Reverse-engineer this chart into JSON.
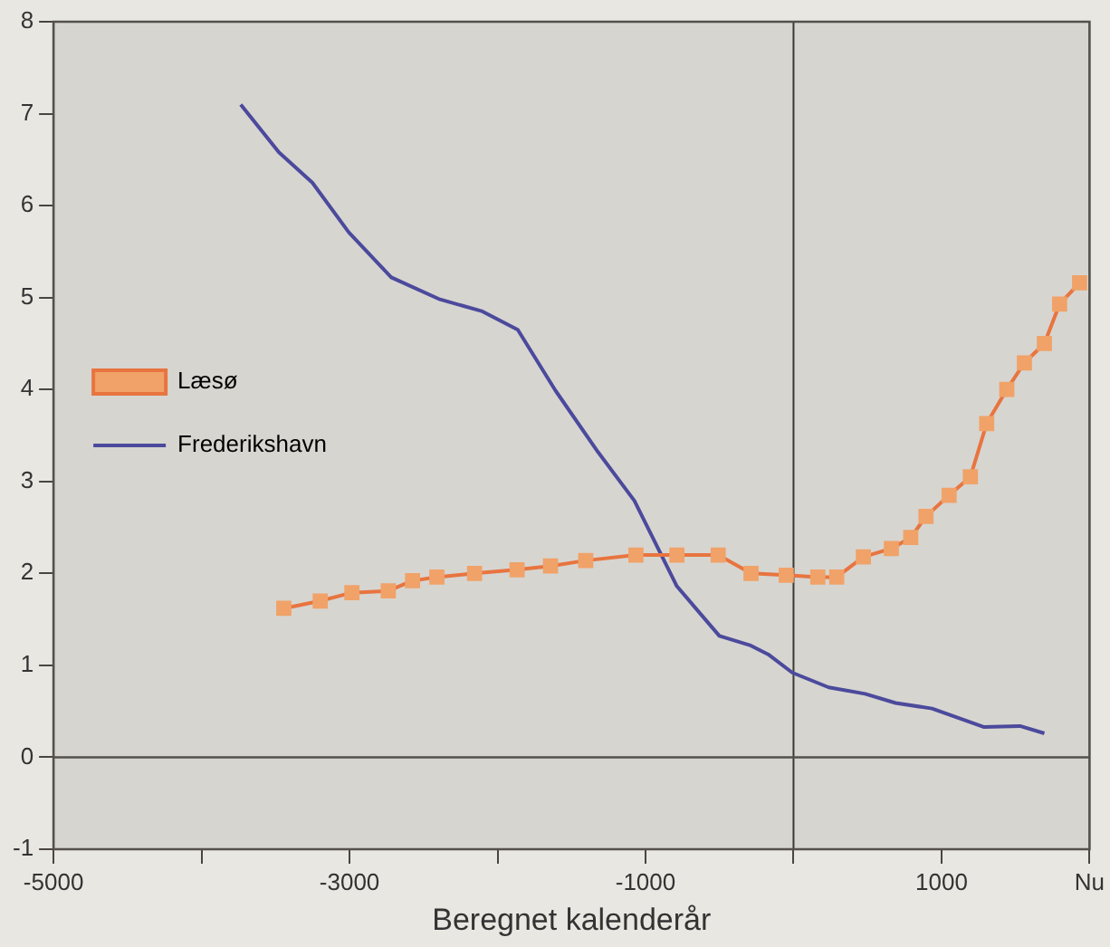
{
  "chart_data": {
    "type": "line",
    "xlabel": "Beregnet kalenderår",
    "xlim": [
      -5000,
      2000
    ],
    "ylim": [
      -1,
      8
    ],
    "xticks": [
      -5000,
      {
        "value": -4000,
        "label": null
      },
      -3000,
      {
        "value": -2000,
        "label": null
      },
      -1000,
      {
        "value": 0,
        "label": null
      },
      1000,
      {
        "value": 2000,
        "label": "Nu"
      }
    ],
    "yticks": [
      -1,
      0,
      1,
      2,
      3,
      4,
      5,
      6,
      7,
      8
    ],
    "legend": "left",
    "grid": false,
    "ref_lines": [
      {
        "axis": "x",
        "value": 0
      },
      {
        "axis": "y",
        "value": 0
      }
    ],
    "series": [
      {
        "name": "Læsø",
        "color": "#e8743f",
        "marker": "square",
        "x": [
          -3444,
          -3198,
          -2984,
          -2738,
          -2574,
          -2410,
          -2155,
          -1868,
          -1642,
          -1404,
          -1065,
          -788,
          -509,
          -287,
          -49,
          164,
          292,
          472,
          661,
          792,
          895,
          1051,
          1195,
          1305,
          1441,
          1560,
          1695,
          1798,
          1933
        ],
        "values": [
          1.62,
          1.7,
          1.79,
          1.81,
          1.92,
          1.96,
          2.0,
          2.04,
          2.08,
          2.14,
          2.2,
          2.2,
          2.2,
          2.0,
          1.98,
          1.96,
          1.96,
          2.18,
          2.27,
          2.39,
          2.62,
          2.85,
          3.05,
          3.63,
          4.0,
          4.29,
          4.5,
          4.93,
          5.16
        ]
      },
      {
        "name": "Frederikshavn",
        "color": "#4b4a9c",
        "marker": "none",
        "x": [
          -3735,
          -3477,
          -3251,
          -3005,
          -2718,
          -2389,
          -2102,
          -1863,
          -1609,
          -1321,
          -1075,
          -788,
          -501,
          -296,
          -172,
          -8,
          238,
          484,
          690,
          936,
          1284,
          1530,
          1695
        ],
        "values": [
          7.1,
          6.58,
          6.25,
          5.71,
          5.22,
          4.98,
          4.85,
          4.65,
          3.99,
          3.32,
          2.79,
          1.86,
          1.32,
          1.22,
          1.12,
          0.92,
          0.76,
          0.69,
          0.59,
          0.53,
          0.33,
          0.34,
          0.26
        ]
      }
    ]
  }
}
